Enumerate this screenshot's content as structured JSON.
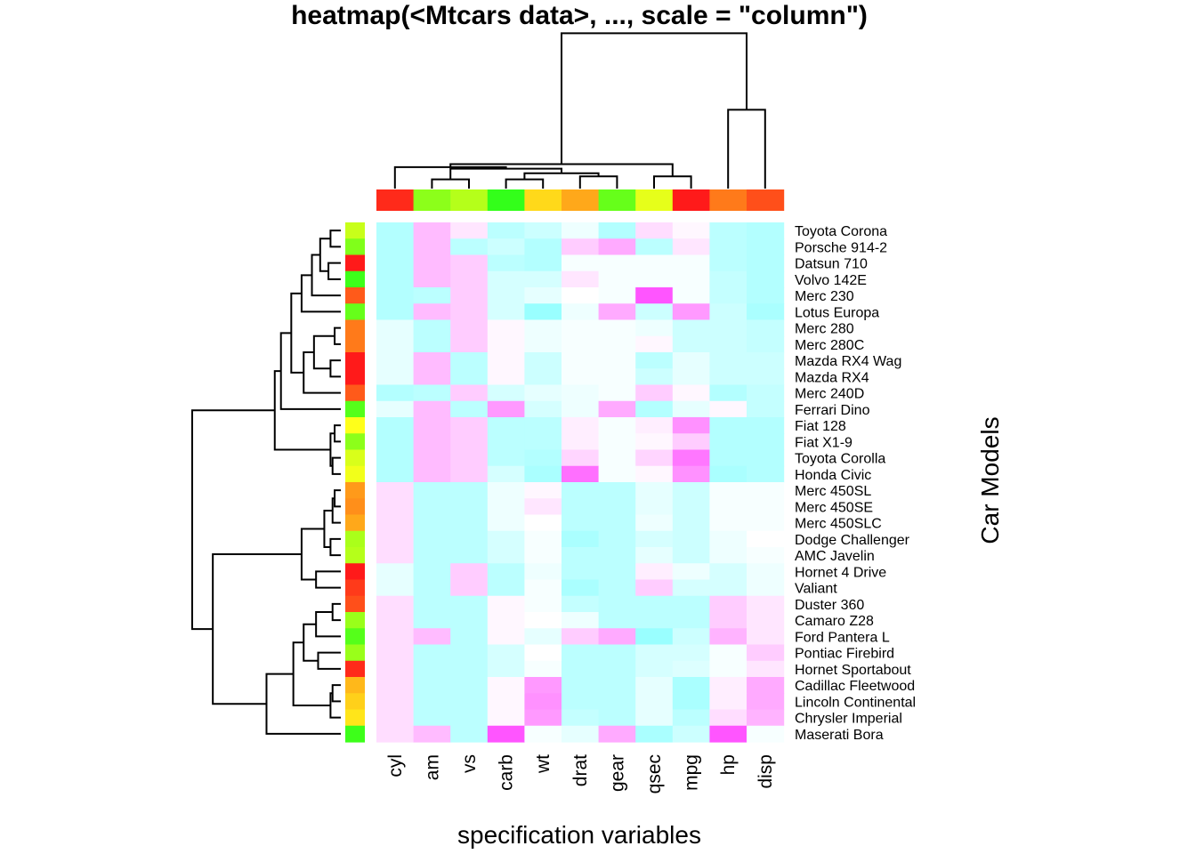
{
  "chart_data": {
    "type": "heatmap",
    "title": "heatmap(<Mtcars data>, ..., scale = \"column\")",
    "xlabel": "specification variables",
    "ylabel": "Car Models",
    "columns": [
      "cyl",
      "am",
      "vs",
      "carb",
      "wt",
      "drat",
      "gear",
      "qsec",
      "mpg",
      "hp",
      "disp"
    ],
    "rows": [
      "Toyota Corona",
      "Porsche 914-2",
      "Datsun 710",
      "Volvo 142E",
      "Merc 230",
      "Lotus Europa",
      "Merc 280",
      "Merc 280C",
      "Mazda RX4 Wag",
      "Mazda RX4",
      "Merc 240D",
      "Ferrari Dino",
      "Fiat 128",
      "Fiat X1-9",
      "Toyota Corolla",
      "Honda Civic",
      "Merc 450SL",
      "Merc 450SE",
      "Merc 450SLC",
      "Dodge Challenger",
      "AMC Javelin",
      "Hornet 4 Drive",
      "Valiant",
      "Duster 360",
      "Camaro Z28",
      "Ford Pantera L",
      "Pontiac Firebird",
      "Hornet Sportabout",
      "Cadillac Fleetwood",
      "Lincoln Continental",
      "Chrysler Imperial",
      "Maserati Bora"
    ],
    "col_side_colors": [
      "#ff2a1a",
      "#8cff1a",
      "#b5ff1a",
      "#33ff1a",
      "#ffd91a",
      "#ffa81a",
      "#66ff1a",
      "#e6ff1a",
      "#ff1a1a",
      "#ff7a1a",
      "#ff4f1a"
    ],
    "row_side_colors": [
      "#c8ff1a",
      "#80ff1a",
      "#ff1a1a",
      "#3dff1a",
      "#ff5a1a",
      "#66ff1a",
      "#ff7a1a",
      "#ff7a1a",
      "#ff1a1a",
      "#ff1a1a",
      "#ff5a1a",
      "#55ff1a",
      "#ffff1a",
      "#8cff1a",
      "#d9ff1a",
      "#f2ff1a",
      "#ff9a1a",
      "#ff8f1a",
      "#ffa81a",
      "#aaff1a",
      "#b5ff1a",
      "#ff1a1a",
      "#ff3a1a",
      "#ff4f1a",
      "#99ff1a",
      "#55ff1a",
      "#99ff1a",
      "#ff2a1a",
      "#ffb81a",
      "#ffd01a",
      "#ffe51a",
      "#3dff1a"
    ],
    "color_scale": {
      "low": "#00ffff",
      "mid": "#ffffff",
      "high": "#ff00ff",
      "range": [
        -3,
        3
      ]
    },
    "values": [
      [
        -0.9,
        0.8,
        0.3,
        -0.8,
        -0.6,
        -0.2,
        -0.9,
        0.4,
        0.1,
        -0.8,
        -0.9
      ],
      [
        -0.9,
        0.8,
        -0.8,
        -0.6,
        -0.9,
        0.6,
        1.0,
        -0.8,
        0.3,
        -0.8,
        -0.9
      ],
      [
        -0.9,
        0.8,
        0.6,
        -0.8,
        -0.9,
        -0.1,
        -0.1,
        -0.1,
        -0.1,
        -0.8,
        -0.9
      ],
      [
        -0.9,
        0.8,
        0.6,
        -0.5,
        -0.5,
        0.3,
        -0.1,
        -0.1,
        -0.1,
        -0.7,
        -0.9
      ],
      [
        -0.9,
        -0.8,
        0.6,
        -0.5,
        -0.3,
        0.0,
        -0.1,
        2.0,
        -0.1,
        -0.7,
        -0.9
      ],
      [
        -0.9,
        0.8,
        0.6,
        -0.5,
        -1.2,
        -0.2,
        1.0,
        -0.6,
        1.2,
        -0.6,
        -1.0
      ],
      [
        -0.3,
        -0.8,
        0.6,
        0.1,
        -0.2,
        -0.1,
        -0.1,
        -0.2,
        -0.6,
        -0.6,
        -0.7
      ],
      [
        -0.3,
        -0.8,
        0.6,
        0.1,
        -0.2,
        -0.1,
        -0.1,
        0.1,
        -0.6,
        -0.6,
        -0.7
      ],
      [
        -0.3,
        0.8,
        -0.8,
        0.1,
        -0.6,
        -0.1,
        -0.1,
        -0.8,
        -0.3,
        -0.6,
        -0.6
      ],
      [
        -0.3,
        0.8,
        -0.8,
        0.1,
        -0.6,
        -0.1,
        -0.1,
        -0.6,
        -0.3,
        -0.6,
        -0.6
      ],
      [
        -0.9,
        -0.8,
        0.6,
        -0.5,
        -0.3,
        -0.2,
        -0.1,
        0.6,
        0.1,
        -0.9,
        -0.7
      ],
      [
        -0.3,
        0.8,
        -0.8,
        1.2,
        -0.5,
        -0.2,
        1.0,
        -0.9,
        -0.3,
        0.1,
        -0.7
      ],
      [
        -0.9,
        0.8,
        0.6,
        -0.8,
        -0.8,
        0.2,
        -0.1,
        0.2,
        1.3,
        -0.9,
        -0.9
      ],
      [
        -0.9,
        0.8,
        0.6,
        -0.8,
        -0.8,
        0.2,
        -0.1,
        0.1,
        0.6,
        -0.9,
        -0.9
      ],
      [
        -0.9,
        0.8,
        0.6,
        -0.8,
        -0.9,
        0.5,
        -0.1,
        0.5,
        1.6,
        -0.9,
        -0.9
      ],
      [
        -0.9,
        0.8,
        0.6,
        -0.5,
        -1.0,
        1.7,
        -0.1,
        0.1,
        1.3,
        -1.0,
        -0.9
      ],
      [
        0.4,
        -0.8,
        -0.8,
        -0.2,
        0.1,
        -0.8,
        -0.8,
        -0.3,
        -0.6,
        -0.1,
        -0.1
      ],
      [
        0.4,
        -0.8,
        -0.8,
        -0.2,
        0.3,
        -0.8,
        -0.8,
        -0.3,
        -0.6,
        -0.1,
        -0.1
      ],
      [
        0.4,
        -0.8,
        -0.8,
        -0.2,
        0.0,
        -0.8,
        -0.8,
        -0.2,
        -0.6,
        -0.1,
        -0.1
      ],
      [
        0.4,
        -0.8,
        -0.8,
        -0.5,
        -0.1,
        -1.0,
        -0.8,
        -0.5,
        -0.6,
        -0.2,
        0.0
      ],
      [
        0.4,
        -0.8,
        -0.8,
        -0.5,
        -0.1,
        -0.8,
        -0.8,
        -0.3,
        -0.6,
        -0.2,
        -0.1
      ],
      [
        -0.3,
        -0.8,
        0.6,
        -0.8,
        -0.2,
        -0.8,
        -0.8,
        0.2,
        -0.2,
        -0.5,
        -0.2
      ],
      [
        -0.3,
        -0.8,
        0.6,
        -0.8,
        -0.1,
        -1.0,
        -0.8,
        0.6,
        -0.5,
        -0.5,
        -0.2
      ],
      [
        0.4,
        -0.8,
        -0.8,
        0.1,
        -0.1,
        -0.7,
        -0.8,
        -0.8,
        -0.8,
        0.6,
        0.3
      ],
      [
        0.4,
        -0.8,
        -0.8,
        0.1,
        -0.0,
        -0.2,
        -0.8,
        -0.8,
        -0.8,
        0.6,
        0.3
      ],
      [
        0.4,
        0.8,
        -0.8,
        0.1,
        -0.3,
        0.6,
        1.0,
        -1.2,
        -0.6,
        0.9,
        0.3
      ],
      [
        0.4,
        -0.8,
        -0.8,
        -0.5,
        0.0,
        -0.8,
        -0.8,
        -0.5,
        -0.5,
        -0.1,
        0.6
      ],
      [
        0.4,
        -0.8,
        -0.8,
        -0.5,
        -0.1,
        -0.8,
        -0.8,
        -0.5,
        -0.4,
        -0.1,
        0.3
      ],
      [
        0.4,
        -0.8,
        -0.8,
        0.1,
        1.2,
        -0.8,
        -0.8,
        -0.3,
        -1.0,
        0.2,
        1.0
      ],
      [
        0.4,
        -0.8,
        -0.8,
        0.1,
        1.3,
        -0.8,
        -0.8,
        -0.3,
        -1.0,
        0.2,
        1.0
      ],
      [
        0.4,
        -0.8,
        -0.8,
        0.1,
        1.2,
        -0.7,
        -0.8,
        -0.3,
        -0.8,
        0.4,
        0.9
      ],
      [
        0.4,
        0.8,
        -0.8,
        2.0,
        -0.1,
        -0.3,
        1.0,
        -1.0,
        -0.6,
        2.0,
        -0.1
      ]
    ]
  }
}
